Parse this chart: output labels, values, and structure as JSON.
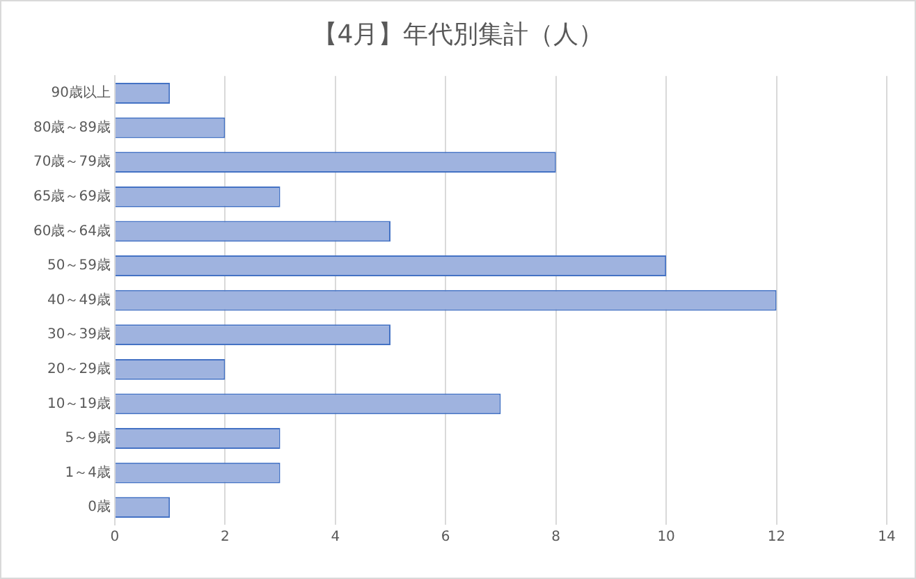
{
  "chart_data": {
    "type": "bar",
    "orientation": "horizontal",
    "title": "【4月】年代別集計（人）",
    "categories": [
      "90歳以上",
      "80歳～89歳",
      "70歳～79歳",
      "65歳～69歳",
      "60歳～64歳",
      "50～59歳",
      "40～49歳",
      "30～39歳",
      "20～29歳",
      "10～19歳",
      "5～9歳",
      "1～4歳",
      "0歳"
    ],
    "values": [
      1,
      2,
      8,
      3,
      5,
      10,
      12,
      5,
      2,
      7,
      3,
      3,
      1
    ],
    "color": "#9fb3df",
    "xlim": [
      0,
      14
    ],
    "xticks": [
      0,
      2,
      4,
      6,
      8,
      10,
      12,
      14
    ],
    "grid": "x",
    "legend": false
  }
}
